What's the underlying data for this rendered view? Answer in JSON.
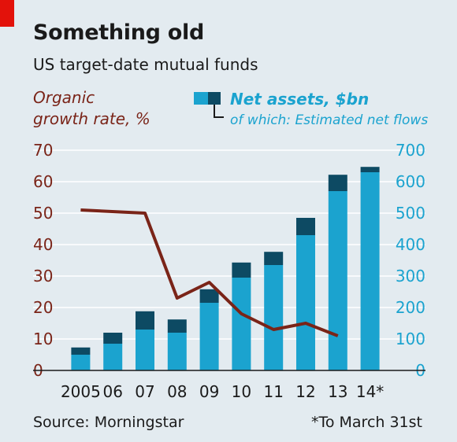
{
  "header": {
    "title": "Something old",
    "subtitle": "US target-date mutual funds"
  },
  "footer": {
    "source": "Source: Morningstar",
    "footnote": "*To March 31st"
  },
  "colors": {
    "net_assets": "#1ba3cf",
    "net_flows": "#0d4a63",
    "growth_line": "#7a2418",
    "background": "#e3ebf0",
    "accent_red": "#e3120b"
  },
  "chart_data": {
    "type": "bar",
    "categories": [
      "2005",
      "06",
      "07",
      "08",
      "09",
      "10",
      "11",
      "12",
      "13",
      "14*"
    ],
    "series": [
      {
        "name": "Net assets, $bn",
        "kind": "stacked-bar-base",
        "axis": "right",
        "values": [
          50,
          85,
          130,
          120,
          215,
          295,
          335,
          430,
          570,
          630
        ]
      },
      {
        "name": "of which: Estimated net flows",
        "kind": "stacked-bar-top",
        "axis": "right",
        "values": [
          23,
          35,
          58,
          42,
          43,
          48,
          42,
          55,
          52,
          17
        ]
      },
      {
        "name": "Organic growth rate, %",
        "kind": "line",
        "axis": "left",
        "values": [
          51,
          null,
          50,
          23,
          28,
          18,
          13,
          15,
          11,
          null
        ]
      }
    ],
    "y_left": {
      "label": "Organic growth rate, %",
      "ylim": [
        0,
        70
      ],
      "ticks": [
        0,
        10,
        20,
        30,
        40,
        50,
        60,
        70
      ]
    },
    "y_right": {
      "label": "Net assets, $bn",
      "ylim": [
        0,
        700
      ],
      "ticks": [
        0,
        100,
        200,
        300,
        400,
        500,
        600,
        700
      ]
    },
    "grid": true,
    "legend": {
      "left": [
        "Organic",
        "growth rate, %"
      ],
      "right_title": "Net assets, $bn",
      "right_sub": "of which: Estimated net flows"
    }
  }
}
